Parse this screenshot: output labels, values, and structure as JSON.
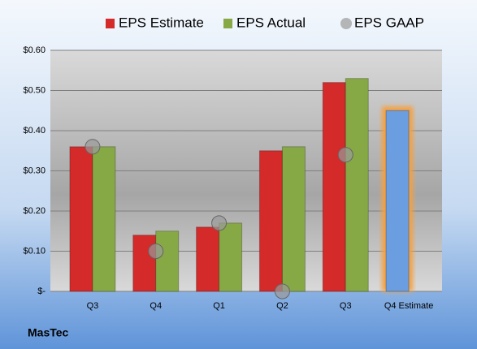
{
  "chart_data": {
    "type": "bar",
    "title": "MasTec",
    "categories": [
      "Q3",
      "Q4",
      "Q1",
      "Q2",
      "Q3",
      "Q4 Estimate"
    ],
    "series": [
      {
        "name": "EPS Estimate",
        "color": "#d42a2a",
        "values": [
          0.36,
          0.14,
          0.16,
          0.35,
          0.52,
          0.45
        ],
        "colors": [
          "#d42a2a",
          "#d42a2a",
          "#d42a2a",
          "#d42a2a",
          "#d42a2a",
          "#6a9ee0"
        ]
      },
      {
        "name": "EPS Actual",
        "color": "#86a845",
        "values": [
          0.36,
          0.15,
          0.17,
          0.36,
          0.53,
          null
        ]
      },
      {
        "name": "EPS GAAP",
        "color": "#9a9a9a",
        "type": "scatter",
        "values": [
          0.36,
          0.1,
          0.17,
          0.0,
          0.34,
          null
        ]
      }
    ],
    "ylim": [
      0,
      0.6
    ],
    "yticks": [
      {
        "value": 0,
        "label": "$-"
      },
      {
        "value": 0.1,
        "label": "$0.10"
      },
      {
        "value": 0.2,
        "label": "$0.20"
      },
      {
        "value": 0.3,
        "label": "$0.30"
      },
      {
        "value": 0.4,
        "label": "$0.40"
      },
      {
        "value": 0.5,
        "label": "$0.50"
      },
      {
        "value": 0.6,
        "label": "$0.60"
      }
    ],
    "grid": true,
    "legend": "top"
  }
}
